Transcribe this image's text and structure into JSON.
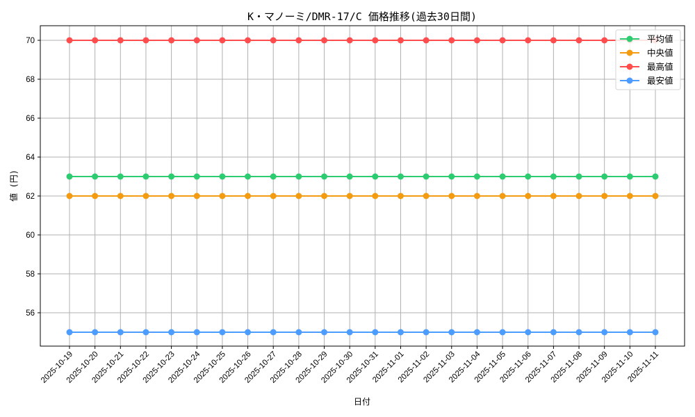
{
  "chart_data": {
    "type": "line",
    "title": "K・マノーミ/DMR-17/C 価格推移(過去30日間)",
    "xlabel": "日付",
    "ylabel": "値 (円)",
    "ylim": [
      54.25,
      70.75
    ],
    "yticks": [
      56,
      58,
      60,
      62,
      64,
      66,
      68,
      70
    ],
    "grid": true,
    "legend_position": "upper right",
    "categories": [
      "2025-10-19",
      "2025-10-20",
      "2025-10-21",
      "2025-10-22",
      "2025-10-23",
      "2025-10-24",
      "2025-10-25",
      "2025-10-26",
      "2025-10-27",
      "2025-10-28",
      "2025-10-29",
      "2025-10-30",
      "2025-10-31",
      "2025-11-01",
      "2025-11-02",
      "2025-11-03",
      "2025-11-04",
      "2025-11-05",
      "2025-11-06",
      "2025-11-07",
      "2025-11-08",
      "2025-11-09",
      "2025-11-10",
      "2025-11-11"
    ],
    "series": [
      {
        "name": "平均値",
        "color": "#2ecc71",
        "values": [
          63,
          63,
          63,
          63,
          63,
          63,
          63,
          63,
          63,
          63,
          63,
          63,
          63,
          63,
          63,
          63,
          63,
          63,
          63,
          63,
          63,
          63,
          63,
          63
        ]
      },
      {
        "name": "中央値",
        "color": "#f39c12",
        "values": [
          62,
          62,
          62,
          62,
          62,
          62,
          62,
          62,
          62,
          62,
          62,
          62,
          62,
          62,
          62,
          62,
          62,
          62,
          62,
          62,
          62,
          62,
          62,
          62
        ]
      },
      {
        "name": "最高値",
        "color": "#ff4d4d",
        "values": [
          70,
          70,
          70,
          70,
          70,
          70,
          70,
          70,
          70,
          70,
          70,
          70,
          70,
          70,
          70,
          70,
          70,
          70,
          70,
          70,
          70,
          70,
          70,
          70
        ]
      },
      {
        "name": "最安値",
        "color": "#4d9cff",
        "values": [
          55,
          55,
          55,
          55,
          55,
          55,
          55,
          55,
          55,
          55,
          55,
          55,
          55,
          55,
          55,
          55,
          55,
          55,
          55,
          55,
          55,
          55,
          55,
          55
        ]
      }
    ]
  }
}
